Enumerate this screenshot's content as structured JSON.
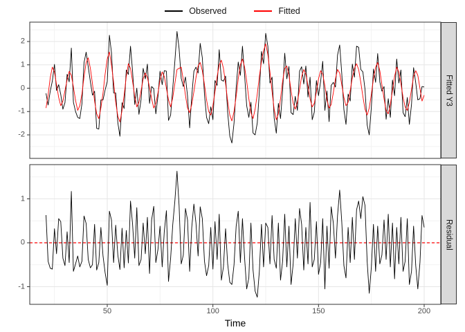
{
  "legend": {
    "items": [
      {
        "label": "Observed",
        "color": "#000000"
      },
      {
        "label": "Fitted",
        "color": "#ff0000"
      }
    ]
  },
  "facets": [
    {
      "label": "Fitted Y3"
    },
    {
      "label": "Residual"
    }
  ],
  "axes": {
    "x": {
      "title": "Time",
      "ticks": [
        50,
        100,
        150,
        200
      ],
      "minor": [
        25,
        75,
        125,
        175
      ],
      "range": [
        13.3,
        207.5
      ]
    },
    "y_top": {
      "ticks": [
        -2,
        -1,
        0,
        1,
        2
      ],
      "minor": [
        -2.5,
        -1.5,
        -0.5,
        0.5,
        1.5,
        2.5
      ],
      "range": [
        -2.83,
        3.01
      ]
    },
    "y_bottom": {
      "ticks": [
        -1,
        0,
        1
      ],
      "minor": [
        -0.5,
        0.5,
        1.5
      ],
      "range": [
        -1.4,
        1.78
      ]
    }
  },
  "styles": {
    "grid_major": "#e6e6e6",
    "grid_minor": "#f2f2f2",
    "panel_border": "#333333",
    "panel_fill": "#ffffff",
    "strip_fill": "#d9d9d9",
    "tick_mark": "#333333",
    "tick_label": "#4d4d4d",
    "observed": "#000000",
    "fitted": "#ff0000",
    "zero_line": "#ff0000"
  },
  "chart_data": [
    {
      "type": "line",
      "facet": "Fitted Y3",
      "xlabel": "Time",
      "x_start": 21,
      "x_step": 1,
      "xlim": [
        13.3,
        207.5
      ],
      "ylim": [
        -2.83,
        3.01
      ],
      "grid": true,
      "legend_position": "top",
      "series": [
        {
          "name": "Observed",
          "color": "#000000",
          "values": [
            -0.22,
            -0.72,
            -0.13,
            0.3,
            1.02,
            -0.1,
            0.15,
            -0.27,
            -0.9,
            -0.62,
            0.6,
            0.27,
            1.72,
            -0.6,
            -1.0,
            -1.25,
            -1.3,
            -0.67,
            1.09,
            1.54,
            0.92,
            0.28,
            -0.3,
            -0.13,
            -1.72,
            -1.75,
            -0.5,
            -0.5,
            -0.08,
            0.28,
            2.27,
            1.52,
            -0.2,
            -0.2,
            -1.48,
            -2.06,
            -0.62,
            -0.87,
            0.78,
            0.59,
            1.8,
            0.72,
            -0.7,
            0.0,
            -1.12,
            -0.48,
            0.85,
            0.4,
            1.03,
            -0.65,
            0.07,
            -0.02,
            -1.1,
            -0.35,
            0.73,
            0.15,
            0.75,
            0.73,
            -1.38,
            -1.15,
            0.02,
            1.15,
            2.43,
            1.7,
            0.42,
            0.07,
            0.48,
            -0.33,
            -1.7,
            -0.35,
            0.73,
            0.9,
            0.65,
            1.92,
            1.3,
            -0.27,
            -1.25,
            -1.52,
            -0.8,
            -1.35,
            0.33,
            0.12,
            1.65,
            0.35,
            0.3,
            0.52,
            -1.03,
            -2.05,
            -2.35,
            -1.5,
            0.03,
            1.12,
            0.55,
            1.8,
            0.55,
            -0.75,
            -1.25,
            -0.6,
            -1.92,
            -2.0,
            -1.49,
            -0.15,
            1.57,
            1.05,
            2.35,
            1.8,
            0.22,
            0.47,
            -1.28,
            -1.93,
            -0.65,
            -1.3,
            -0.12,
            1.5,
            0.4,
            0.93,
            -1.05,
            -1.13,
            -0.35,
            -0.95,
            0.73,
            0.92,
            0.18,
            0.95,
            -0.38,
            0.47,
            -1.35,
            -1.03,
            0.33,
            -0.32,
            0.3,
            1.15,
            -0.95,
            -0.12,
            -1.43,
            0.12,
            0.25,
            0.05,
            1.42,
            1.85,
            0.63,
            -0.92,
            -1.55,
            -0.25,
            -0.55,
            1.03,
            0.47,
            1.8,
            1.75,
            0.8,
            0.7,
            -0.05,
            -1.57,
            -2.0,
            -0.8,
            0.82,
            0.25,
            1.48,
            0.27,
            -0.13,
            0.07,
            -1.33,
            -0.45,
            -1.25,
            0.35,
            -0.32,
            1.25,
            0.22,
            0.78,
            -1.05,
            -1.22,
            -0.4,
            -1.55,
            -0.7,
            0.88,
            0.23,
            -0.5,
            -0.45,
            0.07,
            0.05
          ]
        },
        {
          "name": "Fitted",
          "color": "#ff0000",
          "values": [
            -0.85,
            -0.3,
            0.45,
            0.9,
            0.7,
            0.15,
            -0.4,
            -0.75,
            -0.55,
            -0.1,
            0.35,
            0.72,
            0.55,
            0.05,
            -0.52,
            -0.95,
            -0.75,
            -0.25,
            0.48,
            1.1,
            1.3,
            0.85,
            0.2,
            -0.55,
            -1.1,
            -1.3,
            -0.85,
            -0.2,
            0.6,
            1.25,
            1.55,
            1.0,
            0.25,
            -0.6,
            -1.2,
            -1.45,
            -0.95,
            -0.3,
            0.5,
            1.05,
            0.85,
            0.3,
            -0.35,
            -0.8,
            -0.6,
            -0.1,
            0.4,
            0.65,
            0.45,
            0.05,
            -0.45,
            -0.85,
            -0.65,
            -0.2,
            0.35,
            0.7,
            0.5,
            0.0,
            -0.5,
            -0.8,
            -0.4,
            0.2,
            0.8,
            0.85,
            0.9,
            0.35,
            -0.3,
            -0.85,
            -1.05,
            -0.7,
            -0.15,
            0.45,
            0.95,
            1.1,
            0.75,
            0.15,
            -0.5,
            -1.0,
            -1.15,
            -0.75,
            -0.15,
            0.5,
            1.0,
            1.2,
            0.85,
            0.2,
            -0.55,
            -1.15,
            -1.4,
            -1.0,
            -0.35,
            0.4,
            1.0,
            1.25,
            0.9,
            0.3,
            -0.45,
            -1.05,
            -1.3,
            -0.9,
            -0.25,
            0.5,
            1.15,
            1.6,
            1.9,
            1.45,
            0.7,
            -0.15,
            -0.9,
            -1.35,
            -1.1,
            -0.45,
            0.3,
            0.85,
            0.95,
            0.55,
            -0.1,
            -0.65,
            -0.9,
            -0.6,
            -0.05,
            0.5,
            0.8,
            0.6,
            0.1,
            -0.45,
            -0.8,
            -0.65,
            -0.15,
            0.4,
            0.75,
            0.6,
            0.1,
            -0.5,
            -0.85,
            -0.7,
            -0.2,
            0.4,
            0.8,
            0.65,
            0.15,
            -0.4,
            -0.75,
            -0.6,
            -0.1,
            0.45,
            0.85,
            1.05,
            0.8,
            0.25,
            -0.35,
            -0.9,
            -1.15,
            -0.85,
            -0.25,
            0.4,
            0.9,
            1.1,
            0.75,
            0.15,
            -0.45,
            -0.95,
            -1.1,
            -0.7,
            -0.1,
            0.5,
            0.9,
            0.7,
            0.2,
            -0.4,
            -0.8,
            -0.95,
            -0.6,
            -0.05,
            0.5,
            0.75,
            0.55,
            0.0,
            -0.55,
            -0.3
          ]
        }
      ]
    },
    {
      "type": "line",
      "facet": "Residual",
      "xlabel": "Time",
      "x_start": 21,
      "x_step": 1,
      "xlim": [
        13.3,
        207.5
      ],
      "ylim": [
        -1.4,
        1.78
      ],
      "grid": true,
      "annotations": [
        {
          "type": "hline",
          "y": 0,
          "style": "dashed",
          "color": "#ff0000"
        }
      ],
      "series": [
        {
          "name": "Residual",
          "color": "#000000",
          "values": [
            0.63,
            -0.42,
            -0.58,
            -0.6,
            0.32,
            -0.25,
            0.55,
            0.48,
            -0.35,
            -0.52,
            0.25,
            -0.45,
            1.17,
            -0.65,
            -0.48,
            -0.3,
            -0.55,
            -0.42,
            0.61,
            0.44,
            -0.38,
            -0.57,
            -0.5,
            0.42,
            -0.62,
            -0.45,
            0.35,
            -0.3,
            -0.68,
            -0.97,
            0.72,
            0.52,
            -0.45,
            0.4,
            -0.28,
            -0.61,
            0.33,
            -0.57,
            0.28,
            -0.46,
            0.95,
            0.42,
            -0.35,
            0.8,
            -0.52,
            -0.38,
            0.45,
            -0.25,
            0.58,
            -0.7,
            0.52,
            0.83,
            -0.45,
            -0.15,
            0.38,
            -0.55,
            0.25,
            0.73,
            -0.88,
            -0.35,
            0.42,
            0.95,
            1.63,
            0.85,
            -0.48,
            -0.28,
            0.78,
            0.52,
            -0.65,
            0.35,
            0.88,
            0.45,
            -0.3,
            0.82,
            0.55,
            -0.42,
            -0.75,
            -0.52,
            0.35,
            -0.6,
            0.48,
            -0.38,
            0.65,
            -0.85,
            -0.55,
            0.32,
            -0.48,
            -0.9,
            -0.95,
            -0.5,
            0.38,
            0.72,
            -0.45,
            0.55,
            -0.35,
            -1.05,
            -0.8,
            0.45,
            -0.62,
            -1.1,
            -1.24,
            -0.65,
            0.42,
            -0.55,
            0.45,
            0.35,
            -0.48,
            0.62,
            -0.38,
            -0.58,
            0.45,
            -0.85,
            -0.42,
            0.65,
            -0.55,
            0.38,
            -0.95,
            -0.48,
            0.55,
            -0.35,
            0.78,
            0.42,
            -0.62,
            0.35,
            -0.48,
            0.92,
            -0.55,
            -0.38,
            0.48,
            -0.72,
            -0.45,
            0.55,
            -1.05,
            0.38,
            -0.58,
            0.82,
            0.45,
            -0.35,
            0.62,
            1.2,
            0.48,
            -0.52,
            -0.8,
            0.35,
            -0.45,
            0.58,
            -0.38,
            0.75,
            0.95,
            0.55,
            1.05,
            0.85,
            -0.42,
            -1.15,
            -0.55,
            0.42,
            -0.65,
            0.38,
            -0.48,
            -0.28,
            0.52,
            -0.38,
            0.65,
            -0.55,
            0.45,
            -0.82,
            0.35,
            -0.48,
            0.58,
            -0.65,
            -0.42,
            0.55,
            -0.95,
            -0.65,
            0.38,
            -0.52,
            -1.05,
            -0.45,
            0.62,
            0.35
          ]
        }
      ]
    }
  ]
}
